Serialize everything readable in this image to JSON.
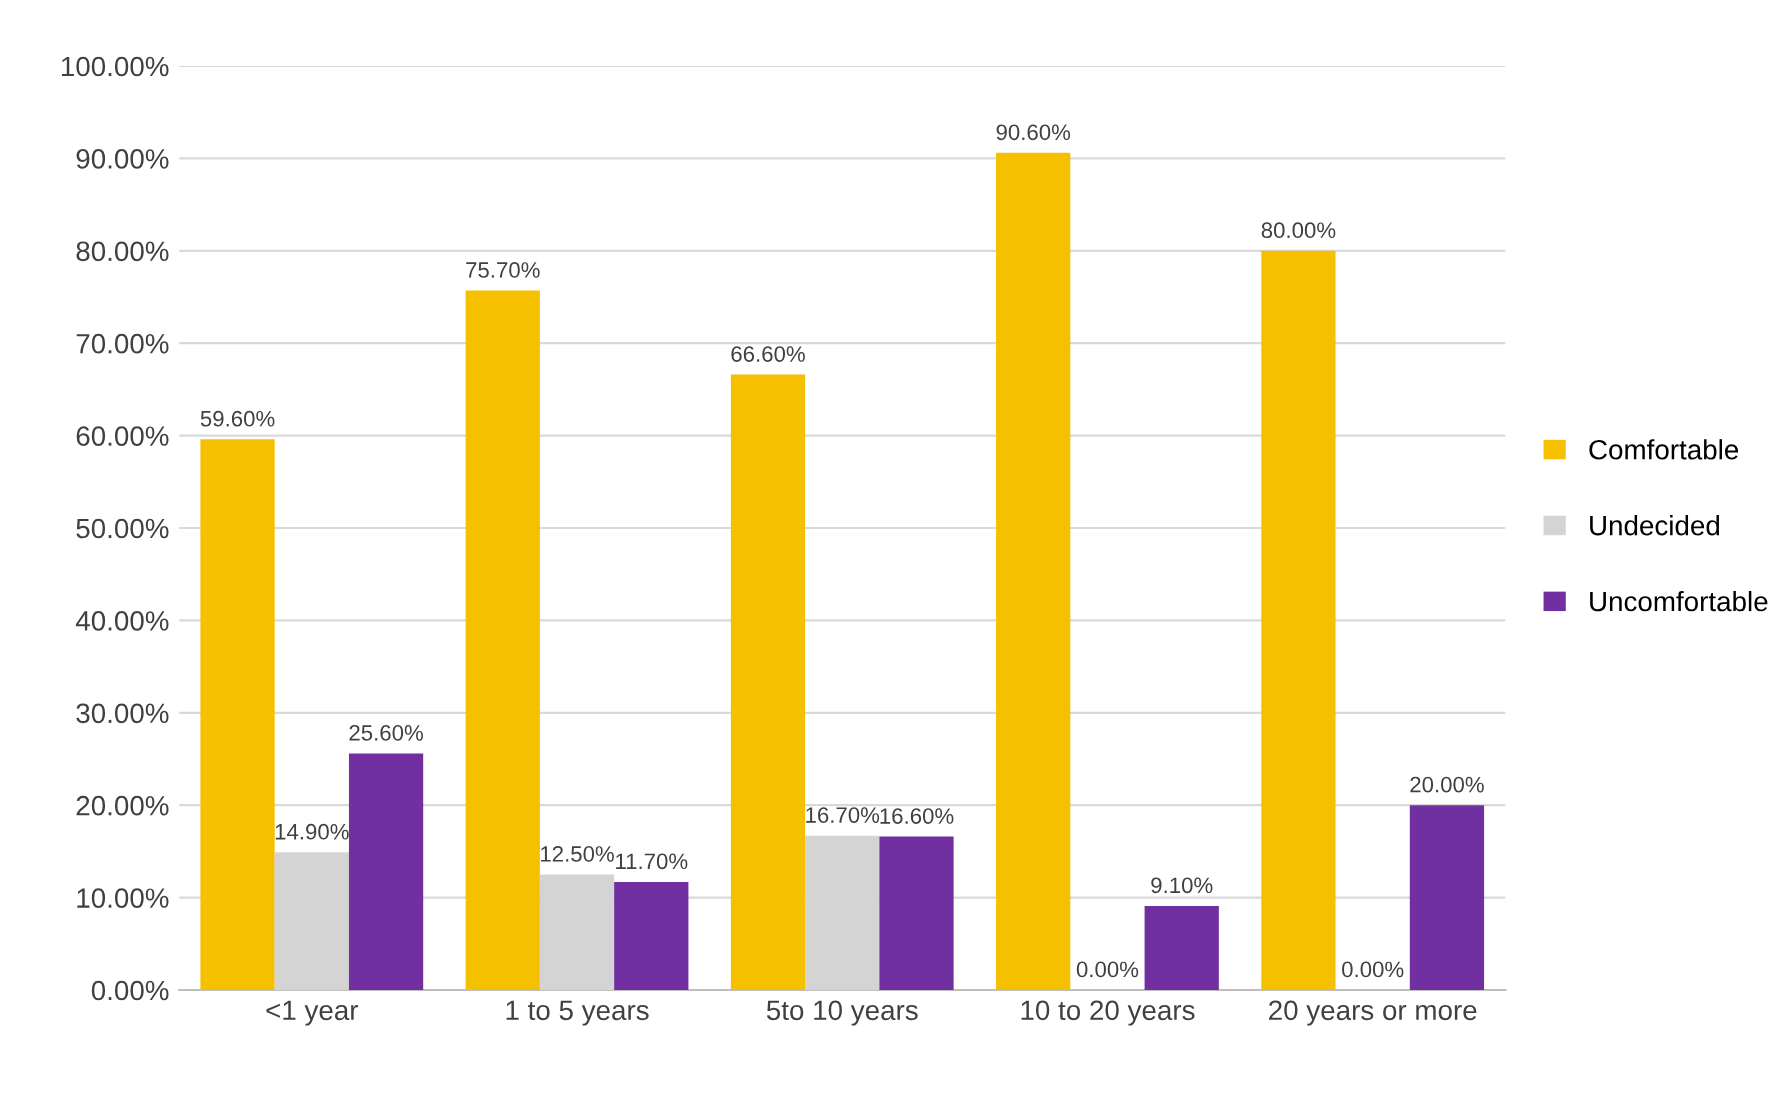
{
  "chart_data": {
    "type": "bar",
    "categories": [
      "<1 year",
      "1 to 5 years",
      "5to 10 years",
      "10 to 20 years",
      "20 years or more"
    ],
    "series": [
      {
        "name": "Comfortable",
        "color": "#f5c000",
        "values": [
          59.6,
          75.7,
          66.6,
          90.6,
          80.0
        ],
        "value_labels": [
          "59.60%",
          "75.70%",
          "66.60%",
          "90.60%",
          "80.00%"
        ]
      },
      {
        "name": "Undecided",
        "color": "#d4d4d4",
        "values": [
          14.9,
          12.5,
          16.7,
          0,
          0
        ],
        "value_labels": [
          "14.90%",
          "12.50%",
          "16.70%",
          "0.00%",
          "0.00%"
        ]
      },
      {
        "name": "Uncomfortable",
        "color": "#7030a0",
        "values": [
          25.6,
          11.7,
          16.6,
          9.1,
          20.0
        ],
        "value_labels": [
          "25.60%",
          "11.70%",
          "16.60%",
          "9.10%",
          "20.00%"
        ]
      }
    ],
    "ylim": [
      0,
      100
    ],
    "yticks": [
      {
        "value": 0,
        "label": "0.00%"
      },
      {
        "value": 10,
        "label": "10.00%"
      },
      {
        "value": 20,
        "label": "20.00%"
      },
      {
        "value": 30,
        "label": "30.00%"
      },
      {
        "value": 40,
        "label": "40.00%"
      },
      {
        "value": 50,
        "label": "50.00%"
      },
      {
        "value": 60,
        "label": "60.00%"
      },
      {
        "value": 70,
        "label": "70.00%"
      },
      {
        "value": 80,
        "label": "80.00%"
      },
      {
        "value": 90,
        "label": "90.00%"
      },
      {
        "value": 100,
        "label": "100.00%"
      }
    ],
    "grid": "y",
    "legend": "right"
  }
}
